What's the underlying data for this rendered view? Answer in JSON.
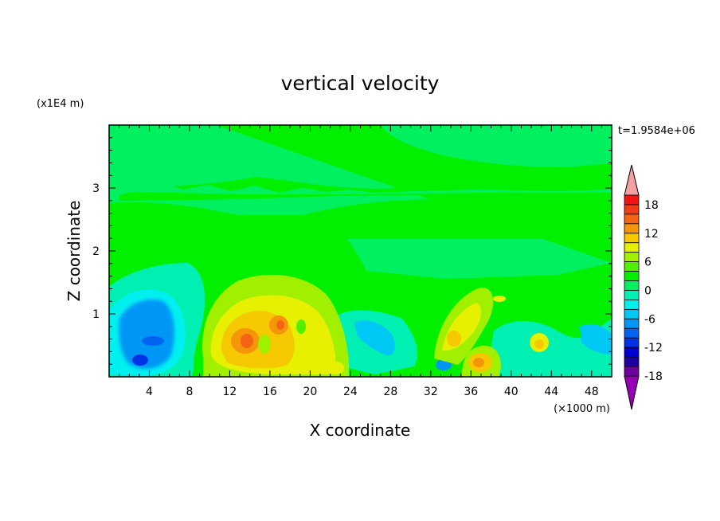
{
  "chart_data": {
    "type": "heatmap",
    "title": "vertical velocity",
    "xlabel": "X coordinate",
    "ylabel": "Z coordinate",
    "x_unit": "(×1000 m)",
    "y_unit": "(x1E4 m)",
    "time_label": "t=1.9584e+06",
    "xlim": [
      0,
      50
    ],
    "ylim": [
      0,
      4
    ],
    "x_ticks": [
      4,
      8,
      12,
      16,
      20,
      24,
      28,
      32,
      36,
      40,
      44,
      48
    ],
    "y_ticks": [
      1,
      2,
      3
    ],
    "colorbar": {
      "tick_labels": [
        "18",
        "12",
        "6",
        "0",
        "-6",
        "-12",
        "-18"
      ],
      "colors_top_to_bottom": [
        "#f4a0a0",
        "#f01414",
        "#f03c14",
        "#f56414",
        "#f5960a",
        "#f5c800",
        "#e6f000",
        "#a0f000",
        "#50f000",
        "#00f000",
        "#00f060",
        "#00f0b4",
        "#00f0f0",
        "#00c8f5",
        "#0096f5",
        "#0064f0",
        "#0032e6",
        "#0000d2",
        "#1e00a0",
        "#6e00a0",
        "#9600b4"
      ]
    },
    "features": [
      {
        "name": "downdraft",
        "x": 5,
        "z": 0.6,
        "value": -12
      },
      {
        "name": "updraft",
        "x": 14,
        "z": 0.55,
        "value": 12
      },
      {
        "name": "updraft",
        "x": 17.5,
        "z": 0.8,
        "value": 9
      },
      {
        "name": "downdraft",
        "x": 27,
        "z": 0.55,
        "value": -8
      },
      {
        "name": "updraft",
        "x": 34,
        "z": 0.7,
        "value": 6
      },
      {
        "name": "updraft",
        "x": 37,
        "z": 0.25,
        "value": 9
      },
      {
        "name": "updraft",
        "x": 43,
        "z": 0.5,
        "value": 5
      }
    ]
  }
}
